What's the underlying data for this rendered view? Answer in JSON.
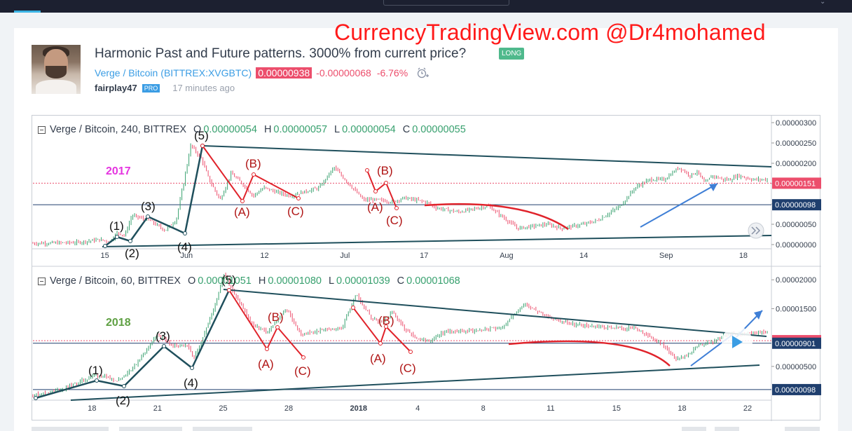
{
  "header": {
    "watermark": "CurrencyTradingView.com @Dr4mohamed",
    "title": "Harmonic Past and Future patterns. 3000% from current price?",
    "badge": "LONG",
    "symbol": {
      "name": "Verge / Bitcoin",
      "exchange_open": "(",
      "exchange": "BITTREX:XVGBTC",
      "exchange_close": ")",
      "price": "0.00000938",
      "change": "-0.00000068",
      "change_pct": "-6.76%"
    },
    "author": "fairplay47",
    "author_badge": "PRO",
    "time": "17 minutes ago",
    "icons": {
      "alarm": "alarm-clock-plus-icon",
      "avatar": "author-avatar"
    }
  },
  "colors": {
    "price_down": "#ec4e6c",
    "up": "#37a06e",
    "link": "#3b9de4",
    "trend_line": "#1f4f5c",
    "wave_line": "#1f4f5c",
    "red_line": "#e0232b",
    "arrow": "#3f7fd6",
    "year2017": "#e535e0",
    "year2018": "#5fa043"
  },
  "chart_data": [
    {
      "type": "candlestick",
      "pane": "top",
      "legend": {
        "name": "Verge / Bitcoin, 240, BITTREX",
        "o_label": "O",
        "o": "0.00000054",
        "h_label": "H",
        "h": "0.00000057",
        "l_label": "L",
        "l": "0.00000054",
        "c_label": "C",
        "c": "0.00000055"
      },
      "year_label": "2017",
      "y_ticks": [
        "0.00000300",
        "0.00000250",
        "0.00000200",
        "0.00000150",
        "0.00000100",
        "0.00000050",
        "0.00000000"
      ],
      "ylim": [
        0,
        3e-06
      ],
      "price_labels": [
        {
          "text": "0.00000151",
          "value": 1.51e-06,
          "color": "#ec4e6c"
        },
        {
          "text": "0.00000098",
          "value": 9.8e-07,
          "color": "#1f3f6e"
        }
      ],
      "x_ticks": [
        "15",
        "Jun",
        "12",
        "Jul",
        "17",
        "Aug",
        "14",
        "Sep",
        "18"
      ],
      "wave_labels": [
        "(1)",
        "(2)",
        "(3)",
        "(4)",
        "(5)",
        "(A)",
        "(B)",
        "(C)",
        "(A)",
        "(B)",
        "(C)"
      ],
      "series": [
        {
          "path_x": [
            0.0,
            0.06,
            0.09,
            0.105,
            0.115,
            0.125,
            0.135,
            0.16,
            0.18,
            0.195,
            0.205,
            0.215,
            0.23,
            0.24,
            0.255,
            0.27,
            0.285,
            0.3,
            0.315,
            0.33,
            0.35,
            0.37,
            0.39,
            0.41,
            0.43,
            0.45,
            0.47,
            0.49,
            0.505,
            0.52,
            0.535,
            0.55,
            0.58,
            0.62,
            0.66,
            0.7,
            0.72,
            0.75,
            0.77,
            0.8,
            0.82,
            0.84,
            0.86,
            0.88,
            0.895,
            0.905,
            0.915,
            0.925,
            0.94,
            0.95,
            0.96,
            0.98,
            1.0
          ],
          "path_y": [
            3e-08,
            5e-08,
            1.2e-07,
            8e-08,
            3e-07,
            2.2e-07,
            7.2e-07,
            5.8e-07,
            3.5e-07,
            6e-07,
            1.5e-06,
            2.45e-06,
            2.1e-06,
            1.6e-06,
            1.1e-06,
            1.75e-06,
            1.5e-06,
            1.2e-06,
            1.4e-06,
            1.3e-06,
            1.2e-06,
            1.3e-06,
            1.4e-06,
            1.9e-06,
            1.5e-06,
            1.1e-06,
            1.1e-06,
            1.05e-06,
            1.15e-06,
            1.1e-06,
            1.05e-06,
            9e-07,
            8e-07,
            9.5e-07,
            4e-07,
            5e-07,
            4e-07,
            5e-07,
            6e-07,
            9.5e-07,
            1.4e-06,
            1.6e-06,
            1.6e-06,
            1.9e-06,
            1.7e-06,
            1.8e-06,
            1.5e-06,
            1.7e-06,
            1.6e-06,
            1.6e-06,
            1.7e-06,
            1.6e-06,
            1.6e-06
          ]
        }
      ]
    },
    {
      "type": "candlestick",
      "pane": "bottom",
      "legend": {
        "name": "Verge / Bitcoin, 60, BITTREX",
        "o_label": "O",
        "o": "0.00001051",
        "h_label": "H",
        "h": "0.00001080",
        "l_label": "L",
        "l": "0.00001039",
        "c_label": "C",
        "c": "0.00001068"
      },
      "year_label": "2018",
      "y_ticks": [
        "0.00002000",
        "0.00001500",
        "0.00000500"
      ],
      "ylim": [
        0,
        2.1e-05
      ],
      "price_labels": [
        {
          "text": "0.00000946",
          "value": 9.46e-06,
          "color": "#ec4e6c"
        },
        {
          "text": "0.00000901",
          "value": 9.01e-06,
          "color": "#1f3f6e"
        },
        {
          "text": "0.00000098",
          "value": 9.8e-07,
          "color": "#1f3f6e"
        }
      ],
      "x_ticks": [
        "18",
        "21",
        "25",
        "28",
        "2018",
        "4",
        "8",
        "11",
        "15",
        "18",
        "22"
      ],
      "wave_labels": [
        "(1)",
        "(2)",
        "(3)",
        "(4)",
        "(5)",
        "(A)",
        "(B)",
        "(C)",
        "(A)",
        "(B)",
        "(C)"
      ],
      "series": [
        {
          "path_x": [
            0.0,
            0.04,
            0.085,
            0.115,
            0.135,
            0.17,
            0.19,
            0.21,
            0.22,
            0.245,
            0.26,
            0.275,
            0.3,
            0.32,
            0.345,
            0.365,
            0.385,
            0.4,
            0.42,
            0.44,
            0.46,
            0.475,
            0.49,
            0.505,
            0.525,
            0.54,
            0.56,
            0.6,
            0.64,
            0.67,
            0.7,
            0.74,
            0.78,
            0.82,
            0.855,
            0.875,
            0.89,
            0.905,
            0.93,
            0.945,
            1.0
          ],
          "path_y": [
            0.0,
            1e-06,
            3.5e-06,
            2.6e-06,
            4.5e-06,
            1.05e-05,
            8.5e-06,
            8.5e-06,
            6.5e-06,
            1.45e-05,
            2.1e-05,
            1.75e-05,
            1.2e-05,
            1.1e-05,
            1.5e-05,
            1.05e-05,
            1.1e-05,
            1.15e-05,
            1.15e-05,
            1.75e-05,
            1.35e-05,
            1.25e-05,
            1.45e-05,
            1.15e-05,
            9.5e-06,
            9.5e-06,
            1.1e-05,
            1.12e-05,
            1.18e-05,
            1.6e-05,
            1.35e-05,
            1.22e-05,
            1.18e-05,
            1.15e-05,
            9e-06,
            6.5e-06,
            6.8e-06,
            8.5e-06,
            9.5e-06,
            1.05e-05,
            1.1e-05
          ]
        }
      ]
    }
  ]
}
